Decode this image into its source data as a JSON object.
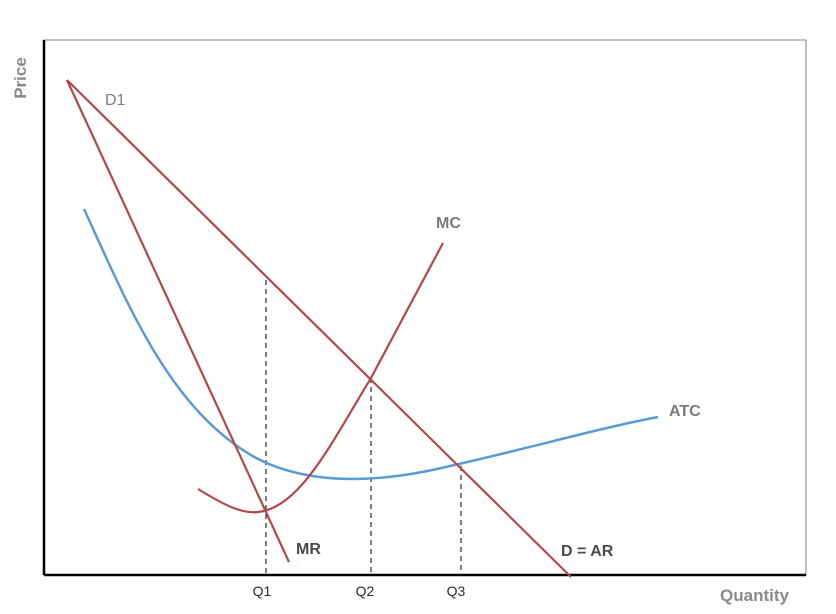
{
  "axes": {
    "y_label": "Price",
    "x_label": "Quantity"
  },
  "quantity_ticks": [
    "Q1",
    "Q2",
    "Q3"
  ],
  "curves": {
    "d1": "D1",
    "mc": "MC",
    "atc": "ATC",
    "mr": "MR",
    "demand": "D = AR"
  },
  "colors": {
    "red_curve": "#b04a48",
    "blue_curve": "#5b9bd5",
    "axis": "#000000",
    "frame": "#7f7f7f",
    "guide": "#3a3a3a"
  }
}
